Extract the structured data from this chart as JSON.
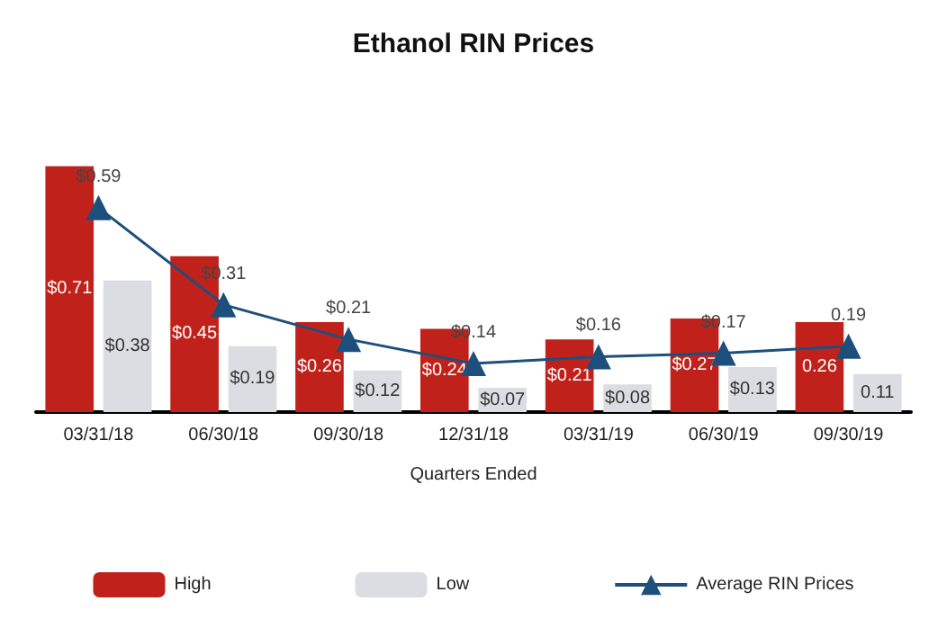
{
  "chart_data": {
    "type": "bar",
    "title": "Ethanol RIN Prices",
    "xlabel": "Quarters Ended",
    "categories": [
      "03/31/18",
      "06/30/18",
      "09/30/18",
      "12/31/18",
      "03/31/19",
      "06/30/19",
      "09/30/19"
    ],
    "series": [
      {
        "name": "High",
        "color": "#c0221b",
        "values": [
          0.71,
          0.45,
          0.26,
          0.24,
          0.21,
          0.27,
          0.26
        ],
        "value_labels": [
          "$0.71",
          "$0.45",
          "$0.26",
          "$0.24",
          "$0.21",
          "$0.27",
          "0.26"
        ]
      },
      {
        "name": "Low",
        "color": "#dcdde2",
        "values": [
          0.38,
          0.19,
          0.12,
          0.07,
          0.08,
          0.13,
          0.11
        ],
        "value_labels": [
          "$0.38",
          "$0.19",
          "$0.12",
          "$0.07",
          "$0.08",
          "$0.13",
          "0.11"
        ]
      },
      {
        "name": "Average RIN Prices",
        "type": "line",
        "color": "#1d4f7c",
        "values": [
          0.59,
          0.31,
          0.21,
          0.14,
          0.16,
          0.17,
          0.19
        ],
        "value_labels": [
          "$0.59",
          "$0.31",
          "$0.21",
          "$0.14",
          "$0.16",
          "$0.17",
          "0.19"
        ]
      }
    ],
    "legend": "bottom",
    "marker": "triangle",
    "line_style": "solid",
    "grid": false
  }
}
